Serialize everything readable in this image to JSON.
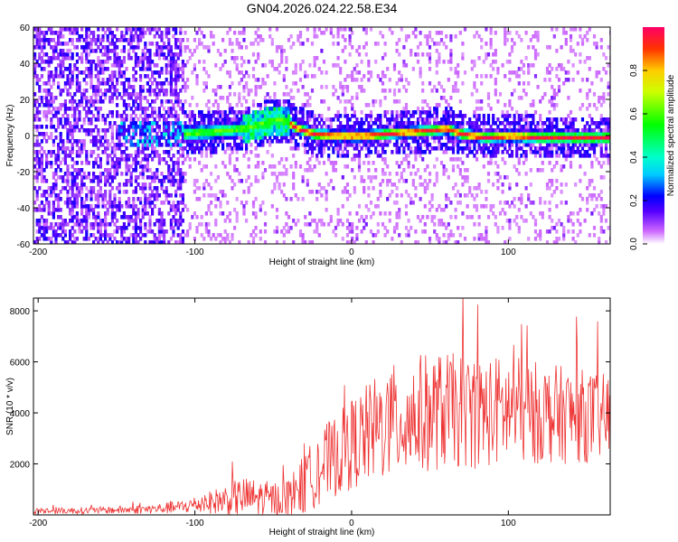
{
  "figure": {
    "title": "GN04.2026.024.22.58.E34"
  },
  "chart_data": [
    {
      "type": "heatmap",
      "title": "GN04.2026.024.22.58.E34",
      "xlabel": "Height of straight line (km)",
      "ylabel": "Frequency (Hz)",
      "xlim": [
        -203,
        165
      ],
      "ylim": [
        -60,
        60
      ],
      "x_ticks": [
        -200,
        -100,
        0,
        100
      ],
      "y_ticks": [
        60,
        40,
        20,
        0,
        -20,
        -40,
        -60
      ],
      "colorbar": {
        "label": "Normalized spectral amplitude",
        "range": [
          0,
          1
        ],
        "ticks": [
          0.0,
          0.2,
          0.4,
          0.6,
          0.8
        ]
      },
      "ridge": {
        "description": "frequency of peak spectral amplitude vs height",
        "x": [
          -110,
          -95,
          -80,
          -70,
          -60,
          -50,
          -42,
          -35,
          -25,
          -10,
          0,
          10,
          20,
          35,
          50,
          60,
          70,
          85,
          100,
          120,
          140,
          160,
          165
        ],
        "y": [
          0,
          1,
          2,
          3,
          5,
          8,
          7,
          3,
          0,
          -1,
          -1,
          -1,
          0,
          1,
          2,
          3,
          0,
          -2,
          -1,
          -2,
          -2,
          -2,
          -2
        ]
      },
      "noise_region_x": [
        -203,
        -108
      ]
    },
    {
      "type": "line",
      "xlabel": "Height of straight line (km)",
      "ylabel": "SNR (10 * v/v)",
      "xlim": [
        -203,
        165
      ],
      "ylim": [
        0,
        8500
      ],
      "x_ticks": [
        -200,
        -100,
        0,
        100
      ],
      "y_ticks": [
        2000,
        4000,
        6000,
        8000
      ],
      "series": [
        {
          "name": "SNR",
          "color": "#ee3333",
          "envelope_x": [
            -203,
            -160,
            -130,
            -110,
            -90,
            -70,
            -50,
            -40,
            -30,
            -20,
            -10,
            0,
            20,
            40,
            60,
            80,
            100,
            120,
            140,
            165
          ],
          "envelope_mean": [
            150,
            180,
            220,
            300,
            500,
            700,
            600,
            700,
            1200,
            1900,
            2300,
            2800,
            3500,
            3900,
            4100,
            4000,
            4100,
            4000,
            3900,
            3800
          ],
          "envelope_spread": [
            120,
            140,
            180,
            250,
            450,
            800,
            700,
            800,
            1200,
            1500,
            1600,
            1800,
            2200,
            2400,
            2300,
            2200,
            2200,
            2000,
            1900,
            1700
          ]
        }
      ]
    }
  ]
}
